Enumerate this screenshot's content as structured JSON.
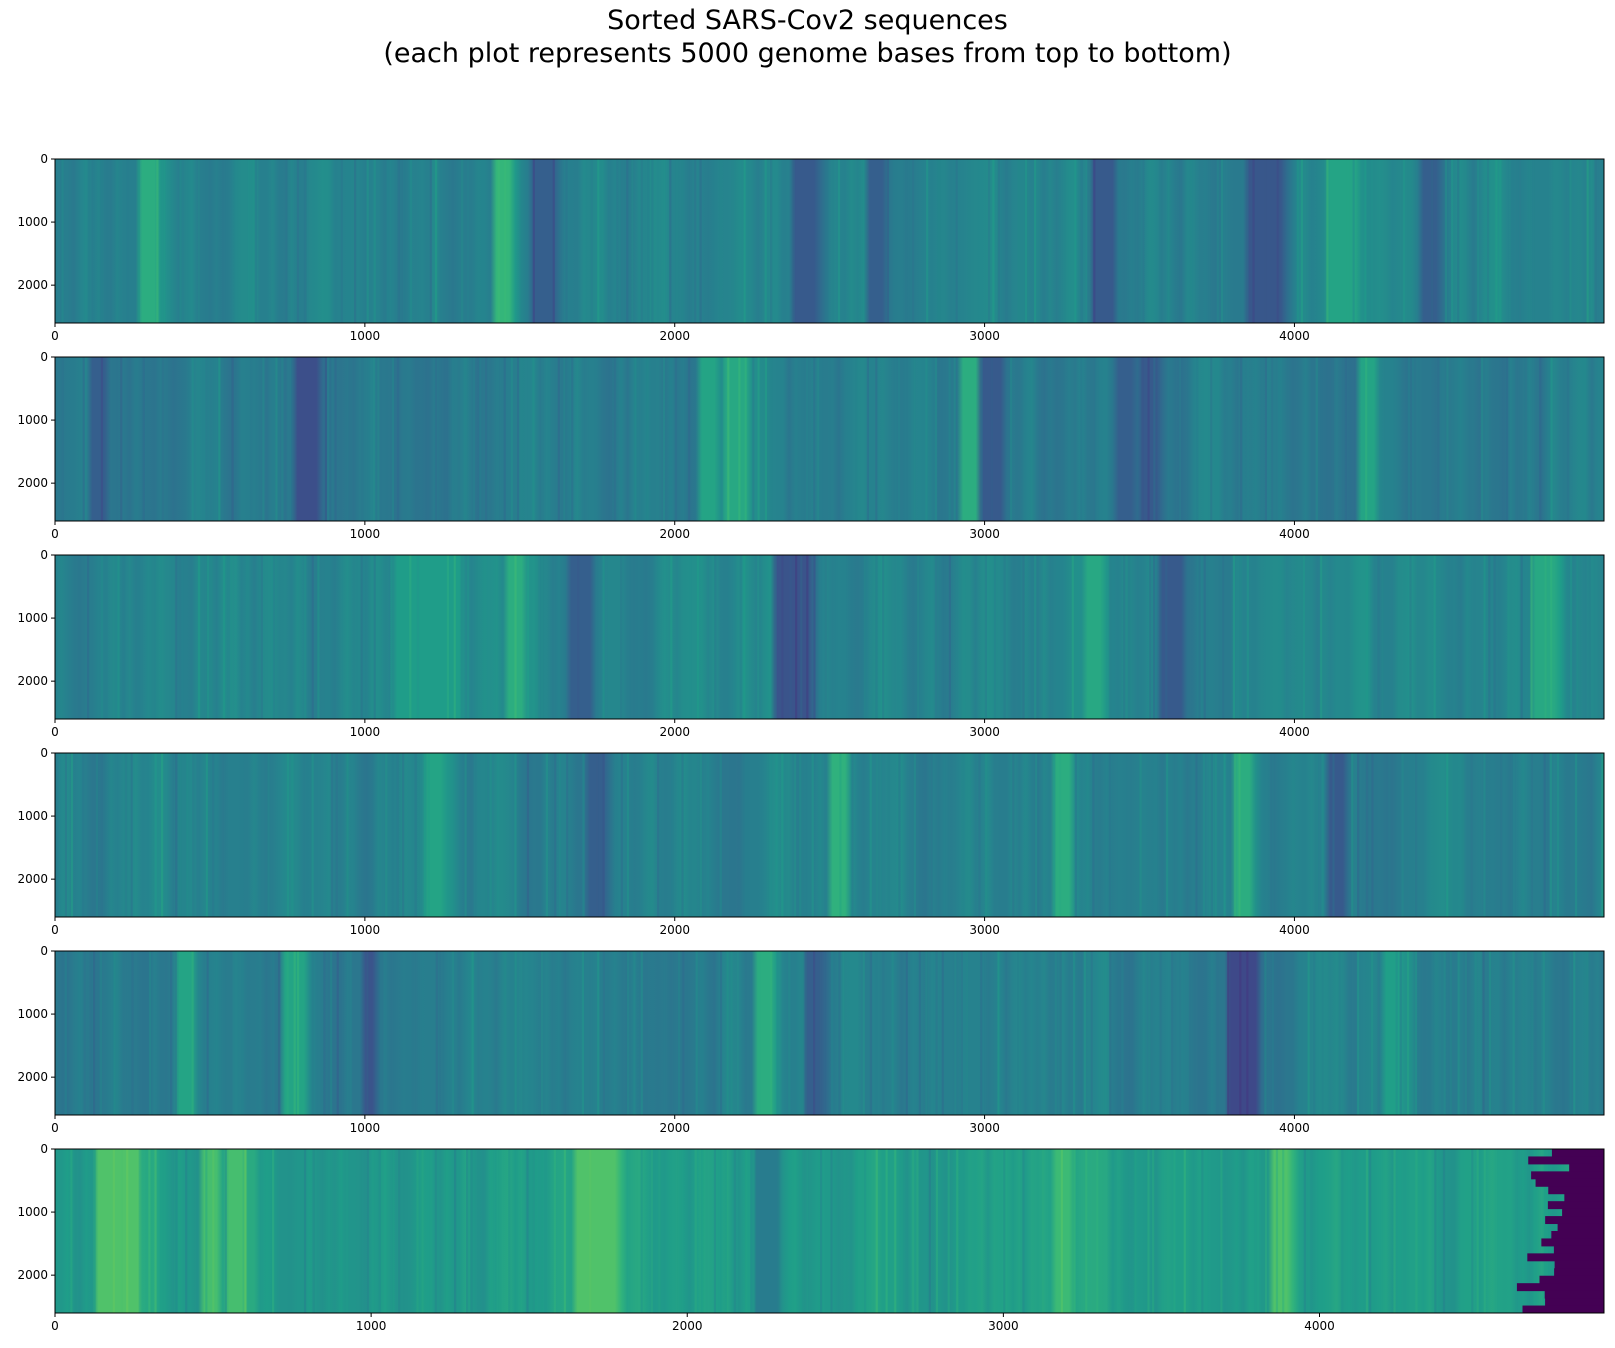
{
  "figure": {
    "title_line1": "Sorted SARS-Cov2 sequences",
    "title_line2": "(each plot represents 5000 genome bases from top to bottom)"
  },
  "colors": {
    "axis": "#000000",
    "tail": "#440154",
    "colormap": "viridis"
  },
  "chart_data": [
    {
      "type": "heatmap",
      "name": "plot-1",
      "xlim": [
        0,
        4999
      ],
      "ylim": [
        0,
        2600
      ],
      "y_inverted": true,
      "xticks": [
        0,
        1000,
        2000,
        3000,
        4000
      ],
      "xtick_labels": [
        "0",
        "1000",
        "2000",
        "3000",
        "4000"
      ],
      "yticks": [
        0,
        1000,
        2000
      ],
      "ytick_labels": [
        "0",
        "1000",
        "2000"
      ],
      "value_base": 0.45,
      "seed": 11,
      "bands": [
        {
          "x": 300,
          "width": 40,
          "value": 0.62
        },
        {
          "x": 1450,
          "width": 30,
          "value": 0.66
        },
        {
          "x": 1570,
          "width": 60,
          "value": 0.3
        },
        {
          "x": 2420,
          "width": 60,
          "value": 0.28
        },
        {
          "x": 2650,
          "width": 50,
          "value": 0.3
        },
        {
          "x": 3380,
          "width": 60,
          "value": 0.28
        },
        {
          "x": 3900,
          "width": 90,
          "value": 0.27
        },
        {
          "x": 4150,
          "width": 80,
          "value": 0.58
        },
        {
          "x": 4430,
          "width": 50,
          "value": 0.3
        }
      ]
    },
    {
      "type": "heatmap",
      "name": "plot-2",
      "xlim": [
        0,
        4999
      ],
      "ylim": [
        0,
        2600
      ],
      "y_inverted": true,
      "xticks": [
        0,
        1000,
        2000,
        3000,
        4000
      ],
      "xtick_labels": [
        "0",
        "1000",
        "2000",
        "3000",
        "4000"
      ],
      "yticks": [
        0,
        1000,
        2000
      ],
      "ytick_labels": [
        "0",
        "1000",
        "2000"
      ],
      "value_base": 0.42,
      "seed": 23,
      "bands": [
        {
          "x": 150,
          "width": 40,
          "value": 0.3
        },
        {
          "x": 820,
          "width": 50,
          "value": 0.24
        },
        {
          "x": 2100,
          "width": 40,
          "value": 0.58
        },
        {
          "x": 2200,
          "width": 50,
          "value": 0.6
        },
        {
          "x": 2950,
          "width": 30,
          "value": 0.62
        },
        {
          "x": 3020,
          "width": 50,
          "value": 0.28
        },
        {
          "x": 3450,
          "width": 40,
          "value": 0.3
        },
        {
          "x": 3530,
          "width": 40,
          "value": 0.28
        },
        {
          "x": 4230,
          "width": 40,
          "value": 0.58
        }
      ]
    },
    {
      "type": "heatmap",
      "name": "plot-3",
      "xlim": [
        0,
        4999
      ],
      "ylim": [
        0,
        2600
      ],
      "y_inverted": true,
      "xticks": [
        0,
        1000,
        2000,
        3000,
        4000
      ],
      "xtick_labels": [
        "0",
        "1000",
        "2000",
        "3000",
        "4000"
      ],
      "yticks": [
        0,
        1000,
        2000
      ],
      "ytick_labels": [
        "0",
        "1000",
        "2000"
      ],
      "value_base": 0.46,
      "seed": 37,
      "bands": [
        {
          "x": 1200,
          "width": 200,
          "value": 0.55
        },
        {
          "x": 1480,
          "width": 40,
          "value": 0.62
        },
        {
          "x": 1700,
          "width": 50,
          "value": 0.3
        },
        {
          "x": 2380,
          "width": 90,
          "value": 0.26
        },
        {
          "x": 3340,
          "width": 40,
          "value": 0.6
        },
        {
          "x": 3600,
          "width": 60,
          "value": 0.28
        },
        {
          "x": 4800,
          "width": 60,
          "value": 0.6
        }
      ]
    },
    {
      "type": "heatmap",
      "name": "plot-4",
      "xlim": [
        0,
        4999
      ],
      "ylim": [
        0,
        2600
      ],
      "y_inverted": true,
      "xticks": [
        0,
        1000,
        2000,
        3000,
        4000
      ],
      "xtick_labels": [
        "0",
        "1000",
        "2000",
        "3000",
        "4000"
      ],
      "yticks": [
        0,
        1000,
        2000
      ],
      "ytick_labels": [
        "0",
        "1000",
        "2000"
      ],
      "value_base": 0.44,
      "seed": 41,
      "bands": [
        {
          "x": 1230,
          "width": 40,
          "value": 0.58
        },
        {
          "x": 1750,
          "width": 40,
          "value": 0.3
        },
        {
          "x": 2530,
          "width": 40,
          "value": 0.64
        },
        {
          "x": 3250,
          "width": 30,
          "value": 0.62
        },
        {
          "x": 3820,
          "width": 40,
          "value": 0.62
        },
        {
          "x": 4120,
          "width": 40,
          "value": 0.28
        }
      ]
    },
    {
      "type": "heatmap",
      "name": "plot-5",
      "xlim": [
        0,
        4999
      ],
      "ylim": [
        0,
        2600
      ],
      "y_inverted": true,
      "xticks": [
        0,
        1000,
        2000,
        3000,
        4000
      ],
      "xtick_labels": [
        "0",
        "1000",
        "2000",
        "3000",
        "4000"
      ],
      "yticks": [
        0,
        1000,
        2000
      ],
      "ytick_labels": [
        "0",
        "1000",
        "2000"
      ],
      "value_base": 0.43,
      "seed": 53,
      "bands": [
        {
          "x": 420,
          "width": 40,
          "value": 0.58
        },
        {
          "x": 770,
          "width": 60,
          "value": 0.58
        },
        {
          "x": 1020,
          "width": 30,
          "value": 0.26
        },
        {
          "x": 2290,
          "width": 40,
          "value": 0.62
        },
        {
          "x": 2450,
          "width": 30,
          "value": 0.3
        },
        {
          "x": 3830,
          "width": 90,
          "value": 0.22
        },
        {
          "x": 4300,
          "width": 40,
          "value": 0.56
        }
      ]
    },
    {
      "type": "heatmap",
      "name": "plot-6",
      "xlim": [
        0,
        4900
      ],
      "ylim": [
        0,
        2600
      ],
      "y_inverted": true,
      "xticks": [
        0,
        1000,
        2000,
        3000,
        4000
      ],
      "xtick_labels": [
        "0",
        "1000",
        "2000",
        "3000",
        "4000"
      ],
      "yticks": [
        0,
        1000,
        2000
      ],
      "ytick_labels": [
        "0",
        "1000",
        "2000"
      ],
      "value_base": 0.55,
      "seed": 67,
      "bands": [
        {
          "x": 200,
          "width": 120,
          "value": 0.72
        },
        {
          "x": 500,
          "width": 30,
          "value": 0.7
        },
        {
          "x": 580,
          "width": 40,
          "value": 0.7
        },
        {
          "x": 1720,
          "width": 120,
          "value": 0.72
        },
        {
          "x": 2250,
          "width": 60,
          "value": 0.42
        },
        {
          "x": 3180,
          "width": 40,
          "value": 0.68
        },
        {
          "x": 3880,
          "width": 40,
          "value": 0.72
        }
      ],
      "tail_start": 4700,
      "tail_value": 0.0
    }
  ]
}
